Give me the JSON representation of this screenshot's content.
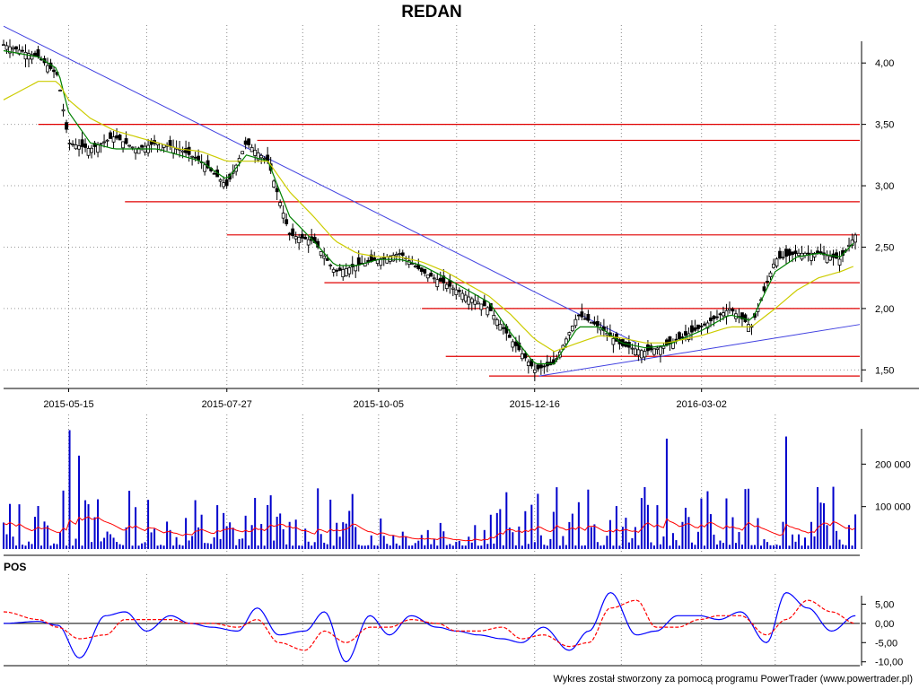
{
  "chart_data": [
    {
      "type": "candlestick",
      "title": "REDAN",
      "x_tick_labels": [
        "2015-05-15",
        "2015-07-27",
        "2015-10-05",
        "2015-12-16",
        "2016-03-02"
      ],
      "y_tick_labels": [
        "4,00",
        "3,50",
        "3,00",
        "2,50",
        "2,00",
        "1,50"
      ],
      "y_ticks": [
        4.0,
        3.5,
        3.0,
        2.5,
        2.0,
        1.5
      ],
      "ylim": [
        1.4,
        4.25
      ],
      "grid": true,
      "x_dates": [
        "2015-04-15",
        "2015-05-01",
        "2015-05-10",
        "2015-05-15",
        "2015-05-25",
        "2015-06-05",
        "2015-06-15",
        "2015-06-25",
        "2015-07-05",
        "2015-07-15",
        "2015-07-27",
        "2015-08-05",
        "2015-08-15",
        "2015-08-25",
        "2015-09-05",
        "2015-09-15",
        "2015-09-25",
        "2015-10-05",
        "2015-10-15",
        "2015-10-25",
        "2015-11-05",
        "2015-11-15",
        "2015-11-25",
        "2015-12-05",
        "2015-12-16",
        "2015-12-25",
        "2016-01-05",
        "2016-01-15",
        "2016-01-25",
        "2016-02-05",
        "2016-02-15",
        "2016-03-02",
        "2016-03-15",
        "2016-03-25",
        "2016-04-05",
        "2016-04-15",
        "2016-04-25",
        "2016-05-05",
        "2016-05-12"
      ],
      "close": [
        4.15,
        4.05,
        3.9,
        3.35,
        3.3,
        3.4,
        3.3,
        3.35,
        3.3,
        3.2,
        3.0,
        3.35,
        3.2,
        2.6,
        2.55,
        2.3,
        2.35,
        2.4,
        2.45,
        2.3,
        2.2,
        2.1,
        2.0,
        1.75,
        1.5,
        1.55,
        1.95,
        1.85,
        1.7,
        1.65,
        1.7,
        1.85,
        2.0,
        1.85,
        2.4,
        2.45,
        2.45,
        2.4,
        2.6
      ],
      "moving_averages": [
        {
          "color": "#008000",
          "values": [
            4.1,
            4.05,
            3.95,
            3.6,
            3.35,
            3.3,
            3.3,
            3.3,
            3.25,
            3.2,
            3.05,
            3.25,
            3.2,
            2.75,
            2.55,
            2.35,
            2.35,
            2.4,
            2.4,
            2.35,
            2.25,
            2.15,
            2.05,
            1.8,
            1.55,
            1.55,
            1.85,
            1.85,
            1.72,
            1.68,
            1.7,
            1.82,
            1.95,
            1.9,
            2.3,
            2.42,
            2.45,
            2.42,
            2.55
          ]
        },
        {
          "color": "#cccc00",
          "values": [
            3.7,
            3.85,
            3.85,
            3.7,
            3.55,
            3.45,
            3.4,
            3.35,
            3.3,
            3.28,
            3.2,
            3.2,
            3.2,
            2.95,
            2.75,
            2.55,
            2.45,
            2.42,
            2.42,
            2.38,
            2.3,
            2.2,
            2.1,
            1.95,
            1.75,
            1.65,
            1.72,
            1.78,
            1.76,
            1.72,
            1.72,
            1.78,
            1.85,
            1.85,
            2.0,
            2.15,
            2.25,
            2.3,
            2.35
          ]
        }
      ],
      "horizontal_levels": [
        {
          "value": 3.5,
          "from": "2015-05-01"
        },
        {
          "value": 3.37,
          "from": "2015-08-10"
        },
        {
          "value": 2.87,
          "from": "2015-06-10"
        },
        {
          "value": 2.6,
          "from": "2015-07-27"
        },
        {
          "value": 2.21,
          "from": "2015-09-10"
        },
        {
          "value": 2.0,
          "from": "2015-10-25"
        },
        {
          "value": 1.61,
          "from": "2015-11-05"
        },
        {
          "value": 1.45,
          "from": "2015-11-25"
        }
      ],
      "trend_lines": [
        {
          "from": [
            "2015-04-15",
            4.3
          ],
          "to": [
            "2016-02-01",
            1.72
          ]
        },
        {
          "from": [
            "2015-12-18",
            1.45
          ],
          "to": [
            "2016-05-14",
            1.87
          ]
        }
      ]
    },
    {
      "type": "bar",
      "panel": "volume",
      "y_tick_labels": [
        "200 000",
        "100 000"
      ],
      "y_ticks": [
        200000,
        100000
      ],
      "ylim": [
        0,
        300000
      ],
      "volume_mean_color": "#ff0000",
      "bar_color": "#0000cc"
    },
    {
      "type": "line",
      "panel": "oscillator",
      "label": "POS",
      "y_tick_labels": [
        "5,00",
        "0,00",
        "-5,00",
        "-10,00"
      ],
      "y_ticks": [
        5,
        0,
        -5,
        -10
      ],
      "ylim": [
        -11,
        10
      ],
      "x_dates": [
        "2015-04-15",
        "2015-05-01",
        "2015-05-10",
        "2015-05-20",
        "2015-06-01",
        "2015-06-10",
        "2015-06-20",
        "2015-07-01",
        "2015-07-10",
        "2015-07-20",
        "2015-08-01",
        "2015-08-10",
        "2015-08-20",
        "2015-09-01",
        "2015-09-10",
        "2015-09-20",
        "2015-10-01",
        "2015-10-10",
        "2015-10-20",
        "2015-11-01",
        "2015-11-10",
        "2015-11-20",
        "2015-12-01",
        "2015-12-10",
        "2015-12-20",
        "2016-01-01",
        "2016-01-10",
        "2016-01-20",
        "2016-02-01",
        "2016-02-10",
        "2016-02-20",
        "2016-03-01",
        "2016-03-10",
        "2016-03-20",
        "2016-04-01",
        "2016-04-10",
        "2016-04-20",
        "2016-05-01",
        "2016-05-12"
      ],
      "series": [
        {
          "color": "#0000ff",
          "values": [
            0,
            0.5,
            -0.5,
            -9,
            2,
            3,
            -2,
            2,
            0,
            -1,
            -2,
            4,
            -3,
            -2,
            3,
            -10,
            2,
            -3,
            2,
            -1,
            -2,
            -3,
            -4,
            -5,
            -1,
            -7,
            -2,
            8,
            -3,
            -2,
            2,
            2,
            1,
            3,
            -5,
            8,
            4,
            -2,
            2
          ]
        },
        {
          "color": "#ff0000",
          "values": [
            3,
            1,
            -1,
            -4,
            -3,
            1,
            1,
            1,
            0,
            0,
            -1,
            1,
            -5,
            -7,
            -2,
            -5,
            -1,
            -1,
            1,
            0,
            -2,
            -2,
            -1,
            -4,
            -3,
            -6,
            -5,
            4,
            6,
            -1,
            -1,
            1,
            2,
            2,
            -3,
            1,
            6,
            3,
            0
          ]
        }
      ],
      "reference_value": 0
    }
  ],
  "footer": "Wykres został stworzony za pomocą programu PowerTrader (www.powertrader.pl)"
}
